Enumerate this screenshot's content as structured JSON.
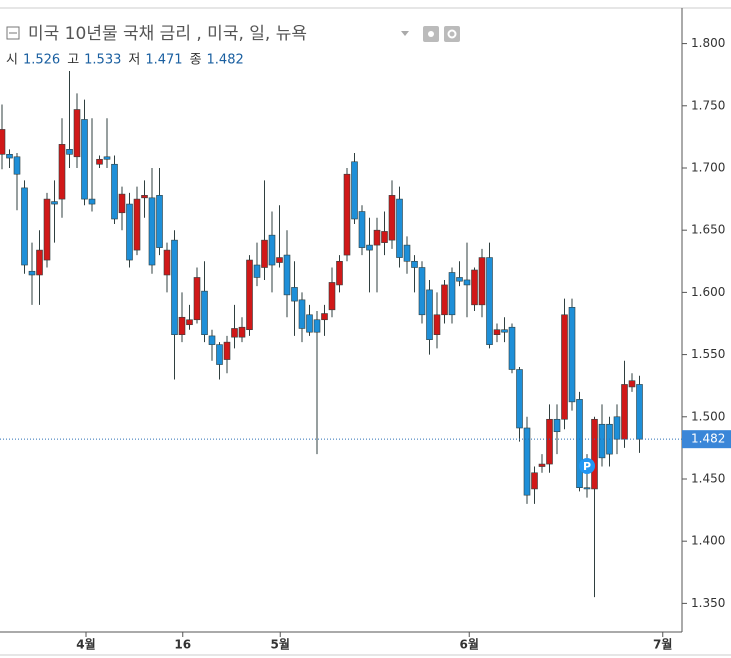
{
  "header": {
    "title": "미국 10년물 국채 금리 , 미국, 일, 뉴욕",
    "ohlc_labels": [
      "시",
      "고",
      "저",
      "종"
    ],
    "ohlc_values": [
      1.526,
      1.533,
      1.471,
      1.482
    ]
  },
  "chart_data": {
    "type": "candlestick",
    "up_color": "#d01818",
    "down_color": "#1e8fd8",
    "open": [
      1.711,
      1.711,
      1.709,
      1.684,
      1.617,
      1.614,
      1.626,
      1.673,
      1.675,
      1.715,
      1.709,
      1.739,
      1.675,
      1.703,
      1.709,
      1.703,
      1.664,
      1.671,
      1.634,
      1.676,
      1.676,
      1.678,
      1.614,
      1.642,
      1.566,
      1.574,
      1.578,
      1.601,
      1.565,
      1.558,
      1.546,
      1.564,
      1.564,
      1.57,
      1.622,
      1.62,
      1.646,
      1.624,
      1.63,
      1.604,
      1.594,
      1.582,
      1.578,
      1.578,
      1.586,
      1.606,
      1.63,
      1.705,
      1.665,
      1.638,
      1.638,
      1.64,
      1.642,
      1.675,
      1.638,
      1.625,
      1.62,
      1.602,
      1.566,
      1.582,
      1.616,
      1.612,
      1.61,
      1.59,
      1.59,
      1.628,
      1.566,
      1.57,
      1.572,
      1.538,
      1.491,
      1.442,
      1.46,
      1.462,
      1.498,
      1.498,
      1.588,
      1.514,
      1.443,
      1.442,
      1.494,
      1.494,
      1.5,
      1.482,
      1.524,
      1.526
    ],
    "high": [
      1.751,
      1.715,
      1.712,
      1.69,
      1.64,
      1.65,
      1.68,
      1.69,
      1.74,
      1.778,
      1.76,
      1.755,
      1.74,
      1.71,
      1.74,
      1.71,
      1.685,
      1.68,
      1.685,
      1.69,
      1.7,
      1.7,
      1.64,
      1.65,
      1.6,
      1.59,
      1.62,
      1.625,
      1.57,
      1.56,
      1.565,
      1.59,
      1.58,
      1.63,
      1.64,
      1.69,
      1.665,
      1.67,
      1.65,
      1.625,
      1.6,
      1.59,
      1.585,
      1.59,
      1.62,
      1.63,
      1.7,
      1.712,
      1.67,
      1.66,
      1.66,
      1.665,
      1.69,
      1.685,
      1.645,
      1.63,
      1.625,
      1.61,
      1.6,
      1.61,
      1.62,
      1.625,
      1.64,
      1.62,
      1.635,
      1.64,
      1.575,
      1.58,
      1.575,
      1.54,
      1.5,
      1.46,
      1.47,
      1.51,
      1.51,
      1.595,
      1.595,
      1.52,
      1.47,
      1.5,
      1.51,
      1.5,
      1.51,
      1.545,
      1.535,
      1.533
    ],
    "low": [
      1.699,
      1.7,
      1.666,
      1.615,
      1.59,
      1.59,
      1.62,
      1.64,
      1.66,
      1.7,
      1.7,
      1.67,
      1.665,
      1.7,
      1.7,
      1.655,
      1.65,
      1.62,
      1.63,
      1.66,
      1.615,
      1.63,
      1.6,
      1.53,
      1.56,
      1.57,
      1.575,
      1.56,
      1.545,
      1.53,
      1.535,
      1.555,
      1.56,
      1.565,
      1.605,
      1.61,
      1.6,
      1.62,
      1.58,
      1.565,
      1.56,
      1.565,
      1.47,
      1.565,
      1.58,
      1.6,
      1.625,
      1.655,
      1.63,
      1.6,
      1.6,
      1.63,
      1.635,
      1.62,
      1.615,
      1.6,
      1.575,
      1.55,
      1.555,
      1.575,
      1.575,
      1.605,
      1.58,
      1.585,
      1.58,
      1.555,
      1.56,
      1.56,
      1.535,
      1.48,
      1.43,
      1.43,
      1.455,
      1.455,
      1.47,
      1.49,
      1.505,
      1.44,
      1.435,
      1.355,
      1.46,
      1.46,
      1.47,
      1.475,
      1.52,
      1.471
    ],
    "close": [
      1.731,
      1.708,
      1.695,
      1.622,
      1.614,
      1.634,
      1.675,
      1.671,
      1.719,
      1.711,
      1.747,
      1.675,
      1.671,
      1.707,
      1.707,
      1.659,
      1.679,
      1.626,
      1.675,
      1.678,
      1.622,
      1.636,
      1.634,
      1.566,
      1.58,
      1.578,
      1.612,
      1.566,
      1.558,
      1.542,
      1.56,
      1.571,
      1.572,
      1.626,
      1.612,
      1.642,
      1.622,
      1.628,
      1.598,
      1.593,
      1.571,
      1.568,
      1.568,
      1.583,
      1.608,
      1.625,
      1.695,
      1.659,
      1.636,
      1.634,
      1.65,
      1.649,
      1.678,
      1.628,
      1.625,
      1.62,
      1.582,
      1.562,
      1.582,
      1.606,
      1.582,
      1.609,
      1.606,
      1.618,
      1.628,
      1.558,
      1.57,
      1.568,
      1.538,
      1.491,
      1.437,
      1.455,
      1.462,
      1.498,
      1.488,
      1.582,
      1.512,
      1.443,
      1.442,
      1.498,
      1.467,
      1.47,
      1.482,
      1.526,
      1.529,
      1.482
    ],
    "ylim": [
      1.327,
      1.827
    ],
    "yticks": [
      {
        "value": 1.35,
        "label": "1.350"
      },
      {
        "value": 1.4,
        "label": "1.400"
      },
      {
        "value": 1.45,
        "label": "1.450"
      },
      {
        "value": 1.5,
        "label": "1.500"
      },
      {
        "value": 1.55,
        "label": "1.550"
      },
      {
        "value": 1.6,
        "label": "1.600"
      },
      {
        "value": 1.65,
        "label": "1.650"
      },
      {
        "value": 1.7,
        "label": "1.700"
      },
      {
        "value": 1.75,
        "label": "1.750"
      },
      {
        "value": 1.8,
        "label": "1.800"
      }
    ],
    "xticks": [
      {
        "value": 11.2,
        "label": "4월"
      },
      {
        "value": 24.1,
        "label": "16"
      },
      {
        "value": 37.1,
        "label": "5월"
      },
      {
        "value": 62.3,
        "label": "6월"
      },
      {
        "value": 88.1,
        "label": "7월"
      }
    ],
    "last_price": {
      "value": 1.482,
      "label": "1.482"
    },
    "marker": {
      "index": 78,
      "label": "P"
    }
  }
}
